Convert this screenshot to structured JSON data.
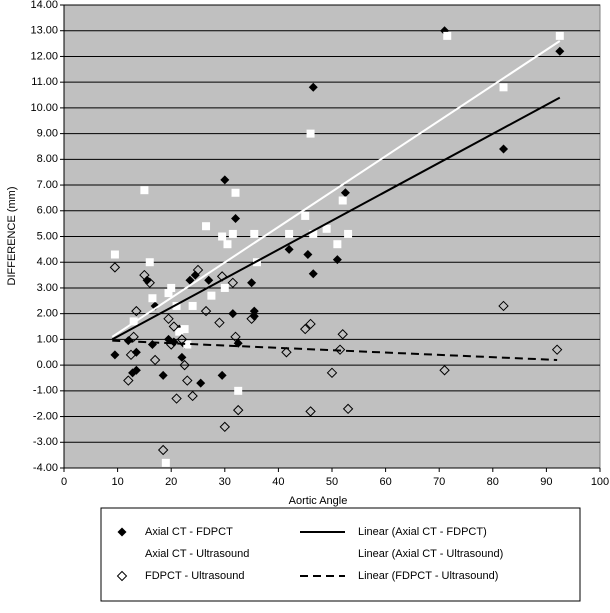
{
  "chart_data": {
    "type": "scatter",
    "x_label": "Aortic Angle",
    "y_label": "DIFFERENCE (mm)",
    "xlim": [
      0,
      100
    ],
    "ylim": [
      -4,
      14
    ],
    "xticks": [
      0,
      10,
      20,
      30,
      40,
      50,
      60,
      70,
      80,
      90,
      100
    ],
    "yticks": [
      {
        "value": -4,
        "label": "-4.00"
      },
      {
        "value": -3,
        "label": "-3.00"
      },
      {
        "value": -2,
        "label": "-2.00"
      },
      {
        "value": -1,
        "label": "-1.00"
      },
      {
        "value": 0,
        "label": "0.00"
      },
      {
        "value": 1,
        "label": "1.00"
      },
      {
        "value": 2,
        "label": "2.00"
      },
      {
        "value": 3,
        "label": "3.00"
      },
      {
        "value": 4,
        "label": "4.00"
      },
      {
        "value": 5,
        "label": "5.00"
      },
      {
        "value": 6,
        "label": "6.00"
      },
      {
        "value": 7,
        "label": "7.00"
      },
      {
        "value": 8,
        "label": "8.00"
      },
      {
        "value": 9,
        "label": "9.00"
      },
      {
        "value": 10,
        "label": "10.00"
      },
      {
        "value": 11,
        "label": "11.00"
      },
      {
        "value": 12,
        "label": "12.00"
      },
      {
        "value": 13,
        "label": "13.00"
      },
      {
        "value": 14,
        "label": "14.00"
      }
    ],
    "grid": true,
    "series": [
      {
        "name": "Axial CT - FDPCT",
        "marker": "diamond-filled",
        "color": "#000000",
        "x": [
          9.5,
          12,
          12.8,
          13.5,
          13.5,
          15.5,
          16.5,
          17,
          18.5,
          19.5,
          20.5,
          21.5,
          22,
          22.5,
          23.5,
          24.5,
          25.5,
          27,
          29.5,
          30,
          31.5,
          32,
          32.5,
          35,
          35.5,
          35.5,
          42,
          45.5,
          46.5,
          46.5,
          51,
          52.5,
          71,
          82,
          92.5
        ],
        "values": [
          0.4,
          0.95,
          -0.3,
          -0.2,
          0.5,
          3.3,
          0.8,
          2.3,
          -0.4,
          1.0,
          0.9,
          1.4,
          0.3,
          0.8,
          3.3,
          3.5,
          -0.7,
          3.3,
          -0.4,
          7.2,
          2.0,
          5.7,
          0.85,
          3.2,
          1.9,
          2.1,
          4.5,
          4.3,
          3.55,
          10.8,
          4.1,
          6.7,
          13.0,
          8.4,
          12.2
        ]
      },
      {
        "name": "Axial CT - Ultrasound",
        "marker": "square-filled",
        "color": "#ffffff",
        "x": [
          9.5,
          13,
          15,
          16,
          16.5,
          19,
          19.5,
          20,
          21,
          21.5,
          22.5,
          23,
          24,
          26.5,
          27.5,
          29.5,
          30,
          30.5,
          31.5,
          32,
          32.5,
          35.5,
          36,
          42,
          45,
          46,
          46.5,
          49,
          51,
          52,
          53,
          71.5,
          82,
          92.5
        ],
        "values": [
          4.3,
          1.7,
          6.8,
          4.0,
          2.6,
          -3.8,
          2.8,
          3.0,
          2.3,
          1.3,
          1.4,
          0.8,
          2.3,
          5.4,
          2.7,
          5.0,
          3.0,
          4.7,
          5.1,
          6.7,
          -1.0,
          5.1,
          4.0,
          5.1,
          5.8,
          9.0,
          5.1,
          5.3,
          4.7,
          6.4,
          5.1,
          12.8,
          10.8,
          12.8
        ]
      },
      {
        "name": "FDPCT - Ultrasound",
        "marker": "diamond-open",
        "color": "#000000",
        "x": [
          9.5,
          12,
          12.5,
          13,
          13.5,
          15,
          16,
          17,
          18.5,
          19.5,
          20,
          20.5,
          21,
          22,
          22.5,
          23,
          24,
          25,
          26.5,
          29,
          29.5,
          30,
          31.5,
          32,
          32.5,
          35,
          41.5,
          45,
          46,
          46,
          50,
          51.5,
          52,
          53,
          71,
          82,
          92
        ],
        "values": [
          3.8,
          -0.6,
          0.4,
          1.1,
          2.1,
          3.5,
          3.2,
          0.2,
          -3.3,
          1.8,
          0.8,
          1.5,
          -1.3,
          1.0,
          0.0,
          -0.6,
          -1.2,
          3.7,
          2.1,
          1.65,
          3.45,
          -2.4,
          3.2,
          1.1,
          -1.75,
          1.8,
          0.5,
          1.4,
          1.6,
          -1.8,
          -0.3,
          0.6,
          1.2,
          -1.7,
          -0.2,
          2.3,
          0.6
        ]
      }
    ],
    "trendlines": [
      {
        "name": "Linear (Axial CT - FDPCT)",
        "color": "#000000",
        "dash": "solid",
        "x": [
          9,
          92.5
        ],
        "values": [
          1.0,
          10.4
        ]
      },
      {
        "name": "Linear (Axial CT - Ultrasound)",
        "color": "#ffffff",
        "dash": "solid",
        "x": [
          9,
          92.5
        ],
        "values": [
          1.1,
          12.6
        ]
      },
      {
        "name": "Linear (FDPCT - Ultrasound)",
        "color": "#000000",
        "dash": "dashed",
        "x": [
          9,
          92
        ],
        "values": [
          0.95,
          0.2
        ]
      }
    ]
  }
}
